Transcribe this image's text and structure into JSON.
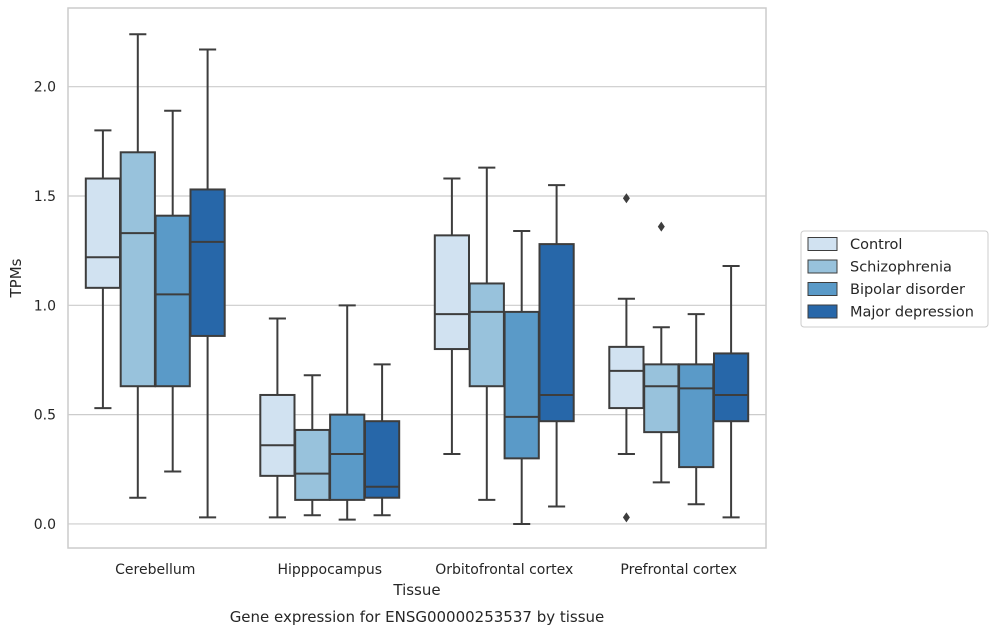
{
  "caption": "Gene expression for ENSG00000253537 by tissue",
  "chart_data": {
    "type": "boxplot",
    "xlabel": "Tissue",
    "ylabel": "TPMs",
    "ylim": [
      -0.11,
      2.36
    ],
    "yticks": [
      0.0,
      0.5,
      1.0,
      1.5,
      2.0
    ],
    "ytick_labels": [
      "0.0",
      "0.5",
      "1.0",
      "1.5",
      "2.0"
    ],
    "grid": "horizontal",
    "legend_position": "right",
    "categories": [
      "Cerebellum",
      "Hipppocampus",
      "Orbitofrontal cortex",
      "Prefrontal cortex"
    ],
    "series": [
      {
        "name": "Control",
        "color": "#d1e2f1",
        "boxes": [
          {
            "whislo": 0.53,
            "q1": 1.08,
            "med": 1.22,
            "q3": 1.58,
            "whishi": 1.8,
            "fliers": []
          },
          {
            "whislo": 0.03,
            "q1": 0.22,
            "med": 0.36,
            "q3": 0.59,
            "whishi": 0.94,
            "fliers": []
          },
          {
            "whislo": 0.32,
            "q1": 0.8,
            "med": 0.96,
            "q3": 1.32,
            "whishi": 1.58,
            "fliers": []
          },
          {
            "whislo": 0.32,
            "q1": 0.53,
            "med": 0.7,
            "q3": 0.81,
            "whishi": 1.03,
            "fliers": [
              1.49,
              0.03
            ]
          }
        ]
      },
      {
        "name": "Schizophrenia",
        "color": "#98c2dc",
        "boxes": [
          {
            "whislo": 0.12,
            "q1": 0.63,
            "med": 1.33,
            "q3": 1.7,
            "whishi": 2.24,
            "fliers": []
          },
          {
            "whislo": 0.04,
            "q1": 0.11,
            "med": 0.23,
            "q3": 0.43,
            "whishi": 0.68,
            "fliers": []
          },
          {
            "whislo": 0.11,
            "q1": 0.63,
            "med": 0.97,
            "q3": 1.1,
            "whishi": 1.63,
            "fliers": []
          },
          {
            "whislo": 0.19,
            "q1": 0.42,
            "med": 0.63,
            "q3": 0.73,
            "whishi": 0.9,
            "fliers": [
              1.36
            ]
          }
        ]
      },
      {
        "name": "Bipolar disorder",
        "color": "#5a9ac8",
        "boxes": [
          {
            "whislo": 0.24,
            "q1": 0.63,
            "med": 1.05,
            "q3": 1.41,
            "whishi": 1.89,
            "fliers": []
          },
          {
            "whislo": 0.02,
            "q1": 0.11,
            "med": 0.32,
            "q3": 0.5,
            "whishi": 1.0,
            "fliers": []
          },
          {
            "whislo": 0.0,
            "q1": 0.3,
            "med": 0.49,
            "q3": 0.97,
            "whishi": 1.34,
            "fliers": []
          },
          {
            "whislo": 0.09,
            "q1": 0.26,
            "med": 0.62,
            "q3": 0.73,
            "whishi": 0.96,
            "fliers": []
          }
        ]
      },
      {
        "name": "Major depression",
        "color": "#2767a9",
        "boxes": [
          {
            "whislo": 0.03,
            "q1": 0.86,
            "med": 1.29,
            "q3": 1.53,
            "whishi": 2.17,
            "fliers": []
          },
          {
            "whislo": 0.04,
            "q1": 0.12,
            "med": 0.17,
            "q3": 0.47,
            "whishi": 0.73,
            "fliers": []
          },
          {
            "whislo": 0.08,
            "q1": 0.47,
            "med": 0.59,
            "q3": 1.28,
            "whishi": 1.55,
            "fliers": []
          },
          {
            "whislo": 0.03,
            "q1": 0.47,
            "med": 0.59,
            "q3": 0.78,
            "whishi": 1.18,
            "fliers": []
          }
        ]
      }
    ]
  }
}
